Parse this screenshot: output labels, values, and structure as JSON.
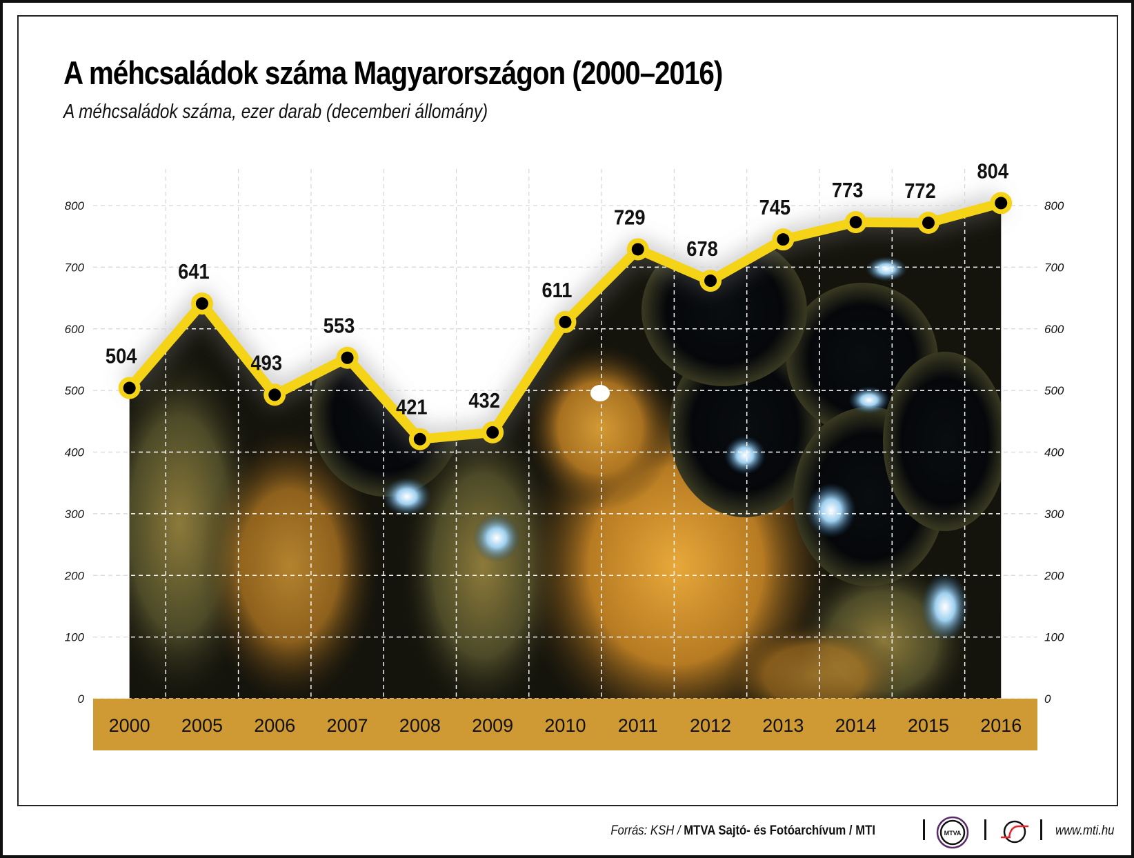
{
  "header": {
    "title": "A méhcsaládok száma Magyarországon (2000–2016)",
    "subtitle": "A méhcsaládok száma, ezer darab (decemberi állomány)"
  },
  "chart_data": {
    "type": "line",
    "title": "A méhcsaládok száma Magyarországon (2000–2016)",
    "subtitle": "A méhcsaládok száma, ezer darab (decemberi állomány)",
    "xlabel": "",
    "ylabel": "ezer darab",
    "categories": [
      "2000",
      "2005",
      "2006",
      "2007",
      "2008",
      "2009",
      "2010",
      "2011",
      "2012",
      "2013",
      "2014",
      "2015",
      "2016"
    ],
    "series": [
      {
        "name": "Méhcsaládok száma (ezer)",
        "values": [
          504,
          641,
          493,
          553,
          421,
          432,
          611,
          729,
          678,
          745,
          773,
          772,
          804
        ]
      }
    ],
    "data_labels": [
      "504",
      "641",
      "493",
      "553",
      "421",
      "432",
      "611",
      "729",
      "678",
      "745",
      "773",
      "772",
      "804"
    ],
    "yticks": [
      0,
      100,
      200,
      300,
      400,
      500,
      600,
      700,
      800
    ],
    "ylim": [
      0,
      800
    ],
    "grid": true,
    "legend": "none",
    "dual_y_axis_labels": true,
    "colors": {
      "line": "#f5d418",
      "marker_fill": "#000000",
      "band": "#cf9a34",
      "grid": "#d9d9d9"
    }
  },
  "footer": {
    "source_label": "Forrás: KSH /",
    "source_org": "MTVA Sajtó- és Fotóarchívum / MTI",
    "logo_mtva_text": "MTVA",
    "logo_mtva_icon": "mtva-logo-icon",
    "logo_mti_icon": "mti-logo-icon",
    "website": "www.mti.hu"
  }
}
